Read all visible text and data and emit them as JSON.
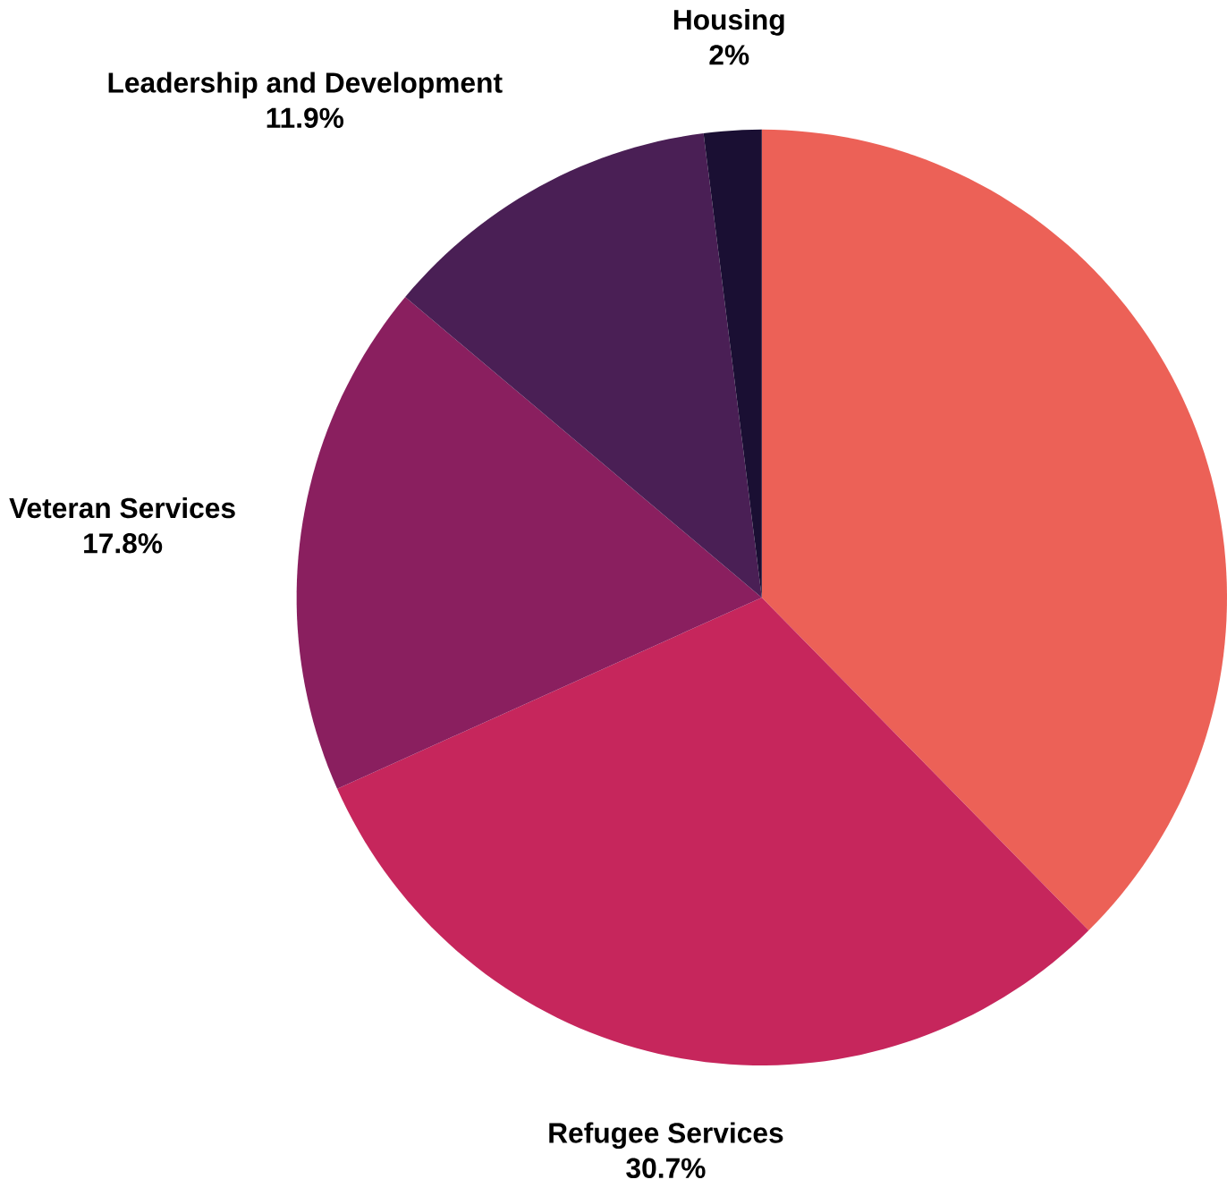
{
  "chart_data": {
    "type": "pie",
    "categories": [
      null,
      "Refugee Services",
      "Veteran Services",
      "Leadership and Development",
      "Housing"
    ],
    "values": [
      37.6,
      30.7,
      17.8,
      11.9,
      2
    ],
    "value_labels": [
      null,
      "30.7%",
      "17.8%",
      "11.9%",
      "2%"
    ],
    "colors": [
      "#ec6157",
      "#c6265c",
      "#8a1f5f",
      "#4a1f55",
      "#1a0f33"
    ]
  }
}
